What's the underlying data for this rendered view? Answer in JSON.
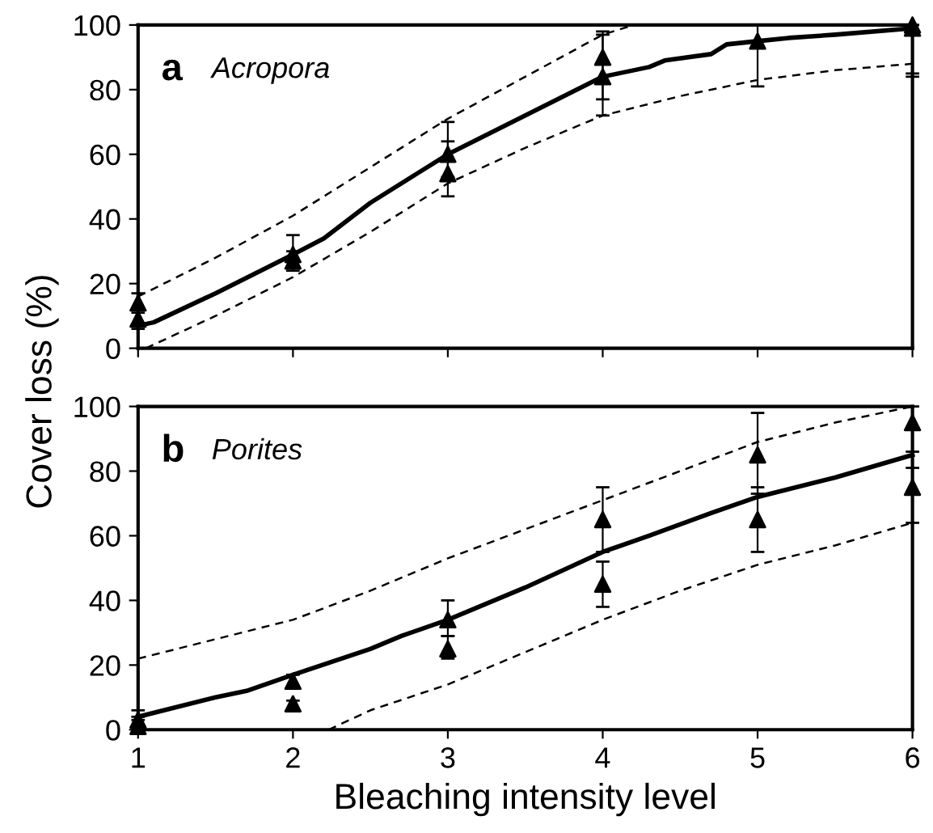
{
  "chart_data": [
    {
      "type": "line",
      "title": "a",
      "subtitle": "Acropora",
      "ylabel": "Cover loss (%)",
      "xlim": [
        1,
        6
      ],
      "xticks": [
        1,
        2,
        3,
        4,
        5,
        6
      ],
      "ylim": [
        0,
        100
      ],
      "yticks": [
        0,
        20,
        40,
        60,
        80,
        100
      ],
      "tick_labels": "y",
      "grid": false,
      "legend": false,
      "series": [
        {
          "type": "line",
          "line_style": "solid",
          "color": "#000000",
          "x": [
            1,
            1.1,
            1.5,
            2,
            2.2,
            2.5,
            2.8,
            3,
            3.5,
            4,
            4.1,
            4.3,
            4.4,
            4.7,
            4.8,
            5,
            5.2,
            5.5,
            6
          ],
          "values": [
            7,
            8,
            17,
            29,
            34,
            45,
            54,
            60,
            72,
            84,
            85,
            87,
            89,
            91,
            94,
            95,
            96,
            97,
            99
          ]
        },
        {
          "type": "line",
          "line_style": "dashed",
          "color": "#000000",
          "x": [
            1,
            1.5,
            2,
            2.5,
            3,
            3.5,
            4,
            4.2
          ],
          "values": [
            16,
            28,
            41,
            56,
            71,
            84,
            97,
            100
          ]
        },
        {
          "type": "line",
          "line_style": "dashed",
          "color": "#000000",
          "x": [
            1.05,
            1.5,
            2,
            2.5,
            3,
            3.5,
            4,
            4.5,
            5,
            5.5,
            6
          ],
          "values": [
            0,
            10,
            22,
            36,
            51,
            62,
            72,
            78,
            83,
            86,
            88
          ]
        },
        {
          "type": "scatter",
          "marker": "triangle",
          "color": "#000000",
          "x": [
            1,
            1,
            2,
            2,
            3,
            3,
            4,
            4,
            5,
            6,
            6
          ],
          "values": [
            14,
            9,
            29,
            27,
            60,
            54,
            90,
            84,
            95,
            100,
            99
          ],
          "errors": [
            [
              12,
              17
            ],
            [
              6,
              11
            ],
            [
              24,
              35
            ],
            [
              25,
              30
            ],
            [
              53,
              70
            ],
            [
              47,
              64
            ],
            [
              77,
              98
            ],
            [
              72,
              97
            ],
            [
              81,
              100
            ],
            [
              85,
              100
            ],
            [
              84,
              100
            ]
          ]
        }
      ]
    },
    {
      "type": "line",
      "title": "b",
      "subtitle": "Porites",
      "xlabel": "Bleaching intensity level",
      "xlim": [
        1,
        6
      ],
      "xticks": [
        1,
        2,
        3,
        4,
        5,
        6
      ],
      "ylim": [
        0,
        100
      ],
      "yticks": [
        0,
        20,
        40,
        60,
        80,
        100
      ],
      "grid": false,
      "legend": false,
      "series": [
        {
          "type": "line",
          "line_style": "solid",
          "color": "#000000",
          "x": [
            1,
            1.5,
            1.7,
            2,
            2.5,
            2.7,
            3,
            3.5,
            4,
            4.3,
            4.7,
            5,
            5.5,
            6
          ],
          "values": [
            4,
            10,
            12,
            17,
            25,
            29,
            34,
            44,
            55,
            60,
            67,
            72,
            78,
            85
          ]
        },
        {
          "type": "line",
          "line_style": "dashed",
          "color": "#000000",
          "x": [
            1,
            1.5,
            2,
            2.5,
            3,
            3.5,
            4,
            4.5,
            5,
            5.5,
            6
          ],
          "values": [
            22,
            28,
            34,
            43,
            53,
            62,
            71,
            80,
            89,
            95,
            100
          ]
        },
        {
          "type": "line",
          "line_style": "dashed",
          "color": "#000000",
          "x": [
            2.23,
            2.5,
            3,
            3.5,
            4,
            4.5,
            5,
            5.5,
            6
          ],
          "values": [
            0,
            6,
            14,
            24,
            34,
            43,
            51,
            57,
            64
          ]
        },
        {
          "type": "scatter",
          "marker": "triangle",
          "color": "#000000",
          "x": [
            1,
            1,
            2,
            2,
            3,
            3,
            4,
            4,
            5,
            5,
            6,
            6
          ],
          "values": [
            3,
            1,
            15,
            8,
            34,
            25,
            65,
            45,
            85,
            65,
            95,
            75
          ],
          "errors": [
            [
              3,
              6
            ],
            [
              1,
              4
            ],
            [
              13,
              17
            ],
            [
              6,
              9
            ],
            [
              29,
              40
            ],
            [
              22,
              29
            ],
            [
              55,
              75
            ],
            [
              38,
              52
            ],
            [
              73,
              98
            ],
            [
              55,
              75
            ],
            [
              86,
              100
            ],
            [
              64,
              81
            ]
          ]
        }
      ]
    }
  ]
}
